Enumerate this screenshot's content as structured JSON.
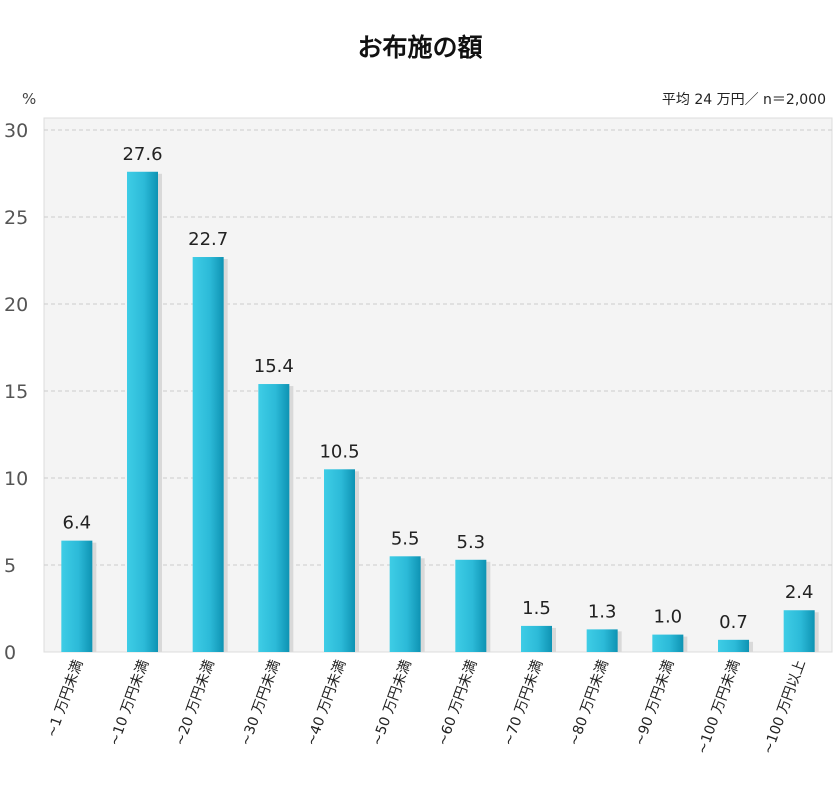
{
  "chart_data": {
    "type": "bar",
    "title": "お布施の額",
    "yunit": "%",
    "note": "平均 24 万円／ n＝2,000",
    "categories": [
      "~1 万円未満",
      "~10 万円未満",
      "~20 万円未満",
      "~30 万円未満",
      "~40 万円未満",
      "~50 万円未満",
      "~60 万円未満",
      "~70 万円未満",
      "~80 万円未満",
      "~90 万円未満",
      "~100 万円未満",
      "~100 万円以上"
    ],
    "values": [
      6.4,
      27.6,
      22.7,
      15.4,
      10.5,
      5.5,
      5.3,
      1.5,
      1.3,
      1.0,
      0.7,
      2.4
    ],
    "value_labels": [
      "6.4",
      "27.6",
      "22.7",
      "15.4",
      "10.5",
      "5.5",
      "5.3",
      "1.5",
      "1.3",
      "1.0",
      "0.7",
      "2.4"
    ],
    "yticks": [
      0,
      5,
      10,
      15,
      20,
      25,
      30
    ],
    "ylim": [
      0,
      30
    ],
    "grid": true,
    "colors": {
      "bar_light": "#3ecde6",
      "bar_dark": "#0e93b3",
      "plot_bg": "#f4f4f4",
      "grid": "#cccccc"
    }
  }
}
